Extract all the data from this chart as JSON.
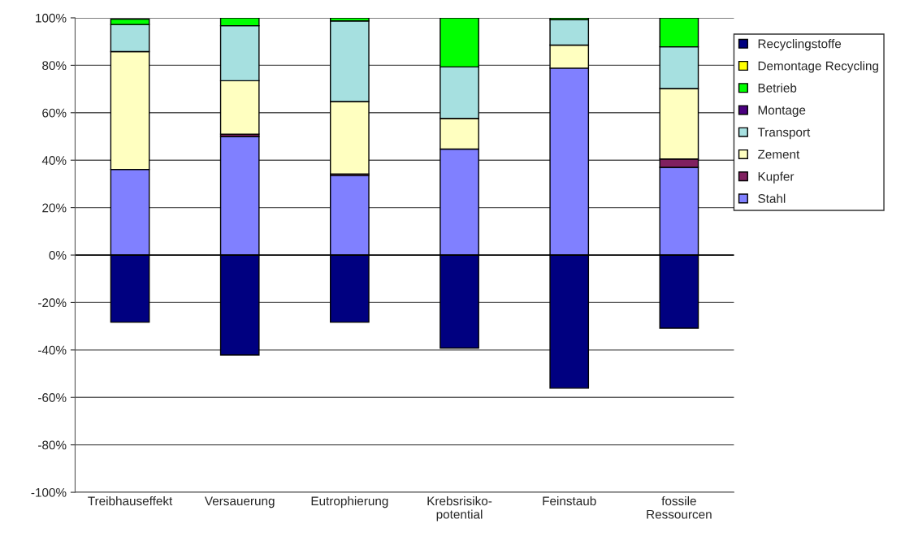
{
  "chart_data": {
    "type": "bar",
    "stacked": true,
    "categories": [
      "Treibhauseffekt",
      "Versauerung",
      "Eutrophierung",
      "Krebsrisiko-\npotential",
      "Feinstaub",
      "fossile\nRessourcen"
    ],
    "series": [
      {
        "name": "Stahl",
        "color": "#8080ff",
        "values": [
          36.1,
          50.0,
          33.6,
          44.7,
          78.8,
          37.0
        ]
      },
      {
        "name": "Kupfer",
        "color": "#802060",
        "values": [
          null,
          1.0,
          0.6,
          0,
          0,
          3.5
        ]
      },
      {
        "name": "Zement",
        "color": "#ffffc0",
        "values": [
          49.7,
          22.5,
          30.5,
          12.9,
          9.7,
          29.7
        ]
      },
      {
        "name": "Transport",
        "color": "#a6e0e0",
        "values": [
          11.4,
          23.2,
          34.0,
          21.7,
          10.7,
          17.6
        ]
      },
      {
        "name": "Montage",
        "color": "#4b0080",
        "values": [
          0,
          0,
          0,
          0,
          0,
          0
        ]
      },
      {
        "name": "Betrieb",
        "color": "#00ff00",
        "values": [
          2.3,
          3.3,
          1.3,
          20.7,
          0.8,
          12.2
        ]
      },
      {
        "name": "Demontage Recycling",
        "color": "#ffff00",
        "values": [
          0,
          0,
          0,
          0,
          0,
          0
        ]
      },
      {
        "name": "Recyclingstoffe",
        "color": "#000080",
        "values": [
          -28.3,
          -42.1,
          -28.3,
          -39.2,
          -56.1,
          -30.8
        ]
      }
    ],
    "ylim": [
      -100,
      100
    ],
    "yticks": [
      {
        "value": -100,
        "label": "-100%"
      },
      {
        "value": -80,
        "label": "-80%"
      },
      {
        "value": -60,
        "label": "-60%"
      },
      {
        "value": -40,
        "label": "-40%"
      },
      {
        "value": -20,
        "label": "-20%"
      },
      {
        "value": 0,
        "label": "0%"
      },
      {
        "value": 20,
        "label": "20%"
      },
      {
        "value": 40,
        "label": "40%"
      },
      {
        "value": 60,
        "label": "60%"
      },
      {
        "value": 80,
        "label": "80%"
      },
      {
        "value": 100,
        "label": "100%"
      }
    ],
    "grid": "y",
    "legend": "right"
  }
}
